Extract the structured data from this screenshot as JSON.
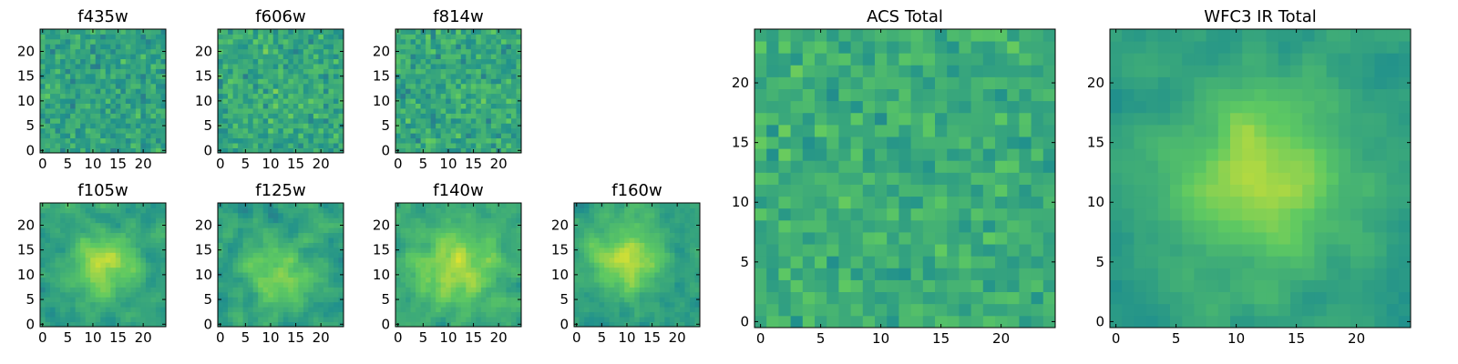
{
  "chart_data": {
    "type": "heatmap",
    "colormap": "viridis",
    "colormap_stops": [
      "#440154",
      "#3b528b",
      "#21918c",
      "#5ec962",
      "#fde725"
    ],
    "grid_size": 25,
    "grid": false,
    "panels": [
      {
        "id": "f435w",
        "title": "f435w",
        "xticks": [
          0,
          5,
          10,
          15,
          20
        ],
        "yticks": [
          0,
          5,
          10,
          15,
          20
        ],
        "xlim": [
          0,
          25
        ],
        "ylim": [
          0,
          25
        ],
        "pattern": "noise",
        "mean": 0.58,
        "spread": 0.2,
        "smooth": 0,
        "peak_x": 12,
        "peak_y": 12,
        "peak_amp": 0,
        "peak_sigma": 5,
        "seed": 101
      },
      {
        "id": "f606w",
        "title": "f606w",
        "xticks": [
          0,
          5,
          10,
          15,
          20
        ],
        "yticks": [
          0,
          5,
          10,
          15,
          20
        ],
        "xlim": [
          0,
          25
        ],
        "ylim": [
          0,
          25
        ],
        "pattern": "noise",
        "mean": 0.6,
        "spread": 0.22,
        "smooth": 0,
        "peak_x": 12,
        "peak_y": 12,
        "peak_amp": 0,
        "peak_sigma": 5,
        "seed": 202
      },
      {
        "id": "f814w",
        "title": "f814w",
        "xticks": [
          0,
          5,
          10,
          15,
          20
        ],
        "yticks": [
          0,
          5,
          10,
          15,
          20
        ],
        "xlim": [
          0,
          25
        ],
        "ylim": [
          0,
          25
        ],
        "pattern": "noise",
        "mean": 0.6,
        "spread": 0.22,
        "smooth": 0,
        "peak_x": 12,
        "peak_y": 12,
        "peak_amp": 0,
        "peak_sigma": 5,
        "seed": 303
      },
      {
        "id": "f105w",
        "title": "f105w",
        "xticks": [
          0,
          5,
          10,
          15,
          20
        ],
        "yticks": [
          0,
          5,
          10,
          15,
          20
        ],
        "xlim": [
          0,
          25
        ],
        "ylim": [
          0,
          25
        ],
        "pattern": "smooth-peak",
        "mean": 0.55,
        "spread": 0.2,
        "smooth": 1,
        "peak_x": 12,
        "peak_y": 12,
        "peak_amp": 0.3,
        "peak_sigma": 5,
        "seed": 404
      },
      {
        "id": "f125w",
        "title": "f125w",
        "xticks": [
          0,
          5,
          10,
          15,
          20
        ],
        "yticks": [
          0,
          5,
          10,
          15,
          20
        ],
        "xlim": [
          0,
          25
        ],
        "ylim": [
          0,
          25
        ],
        "pattern": "smooth-peak",
        "mean": 0.55,
        "spread": 0.22,
        "smooth": 1,
        "peak_x": 12,
        "peak_y": 10,
        "peak_amp": 0.25,
        "peak_sigma": 5,
        "seed": 505
      },
      {
        "id": "f140w",
        "title": "f140w",
        "xticks": [
          0,
          5,
          10,
          15,
          20
        ],
        "yticks": [
          0,
          5,
          10,
          15,
          20
        ],
        "xlim": [
          0,
          25
        ],
        "ylim": [
          0,
          25
        ],
        "pattern": "smooth-peak",
        "mean": 0.58,
        "spread": 0.2,
        "smooth": 1,
        "peak_x": 12,
        "peak_y": 11,
        "peak_amp": 0.3,
        "peak_sigma": 6,
        "seed": 606
      },
      {
        "id": "f160w",
        "title": "f160w",
        "xticks": [
          0,
          5,
          10,
          15,
          20
        ],
        "yticks": [
          0,
          5,
          10,
          15,
          20
        ],
        "xlim": [
          0,
          25
        ],
        "ylim": [
          0,
          25
        ],
        "pattern": "smooth-peak",
        "mean": 0.55,
        "spread": 0.2,
        "smooth": 1,
        "peak_x": 10,
        "peak_y": 13,
        "peak_amp": 0.35,
        "peak_sigma": 5,
        "seed": 707
      },
      {
        "id": "acs-total",
        "title": "ACS Total",
        "xticks": [
          0,
          5,
          10,
          15,
          20
        ],
        "yticks": [
          0,
          5,
          10,
          15,
          20
        ],
        "xlim": [
          0,
          25
        ],
        "ylim": [
          0,
          25
        ],
        "pattern": "noise",
        "mean": 0.62,
        "spread": 0.18,
        "smooth": 0,
        "peak_x": 12,
        "peak_y": 12,
        "peak_amp": 0,
        "peak_sigma": 5,
        "seed": 808
      },
      {
        "id": "wfc3-ir-total",
        "title": "WFC3 IR Total",
        "xticks": [
          0,
          5,
          10,
          15,
          20
        ],
        "yticks": [
          0,
          5,
          10,
          15,
          20
        ],
        "xlim": [
          0,
          25
        ],
        "ylim": [
          0,
          25
        ],
        "pattern": "smooth-peak",
        "mean": 0.55,
        "spread": 0.14,
        "smooth": 1,
        "peak_x": 12,
        "peak_y": 12,
        "peak_amp": 0.35,
        "peak_sigma": 5,
        "seed": 909
      }
    ]
  }
}
